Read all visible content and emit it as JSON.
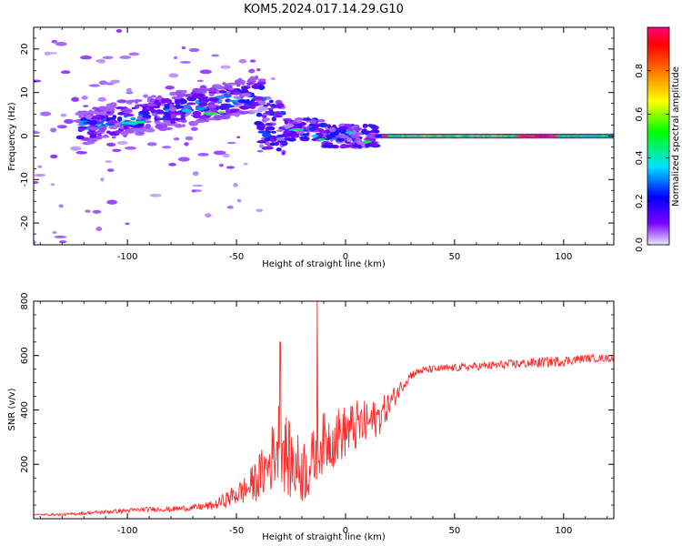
{
  "page_title": "KOM5.2024.017.14.29.G10",
  "chart_data": [
    {
      "type": "heatmap",
      "xlabel": "Height of straight line (km)",
      "ylabel": "Frequency (Hz)",
      "xlim": [
        -143,
        123
      ],
      "ylim": [
        -25,
        25
      ],
      "xticks": [
        -100,
        -50,
        0,
        50,
        100
      ],
      "yticks": [
        -20,
        -10,
        0,
        10,
        20
      ],
      "colorbar": {
        "label": "Normalized spectral amplitude",
        "range": [
          0,
          1
        ],
        "ticks": [
          "0.0",
          "0.2",
          "0.4",
          "0.6",
          "0.8"
        ],
        "colormap": "rainbow (purple → blue → cyan → green → yellow → red → magenta)"
      },
      "features": [
        {
          "x_range": [
            -120,
            -40
          ],
          "freq_trend_hz": [
            2,
            10
          ],
          "amplitude_max": 0.5
        },
        {
          "x_range": [
            -40,
            12
          ],
          "freq_hz": [
            -1,
            3
          ],
          "amplitude_max": 0.55
        },
        {
          "x_range": [
            15,
            123
          ],
          "freq_hz": 0,
          "amplitude_max": 0.9
        }
      ]
    },
    {
      "type": "line",
      "xlabel": "Height of straight line (km)",
      "ylabel": "SNR (v/v)",
      "xlim": [
        -143,
        123
      ],
      "ylim": [
        0,
        800
      ],
      "xticks": [
        -100,
        -50,
        0,
        50,
        100
      ],
      "yticks": [
        200,
        400,
        600,
        800
      ],
      "series": [
        {
          "color": "#ff2a2a",
          "x": [
            -143,
            -130,
            -120,
            -110,
            -100,
            -90,
            -80,
            -70,
            -60,
            -55,
            -50,
            -45,
            -40,
            -35,
            -32,
            -30,
            -28,
            -25,
            -20,
            -15,
            -13,
            -10,
            -5,
            0,
            5,
            10,
            15,
            20,
            25,
            30,
            35,
            40,
            50,
            60,
            70,
            80,
            90,
            100,
            110,
            123
          ],
          "y": [
            15,
            15,
            20,
            25,
            30,
            35,
            35,
            40,
            50,
            70,
            90,
            110,
            150,
            200,
            260,
            300,
            250,
            200,
            180,
            200,
            260,
            280,
            300,
            320,
            340,
            350,
            370,
            420,
            480,
            530,
            545,
            550,
            555,
            560,
            565,
            570,
            575,
            580,
            590,
            590
          ],
          "noise_envelope": [
            2,
            3,
            4,
            5,
            6,
            6,
            7,
            8,
            12,
            20,
            30,
            40,
            60,
            80,
            100,
            120,
            110,
            100,
            90,
            90,
            80,
            80,
            80,
            70,
            70,
            60,
            50,
            35,
            20,
            12,
            10,
            10,
            10,
            10,
            12,
            12,
            14,
            14,
            10,
            10
          ]
        }
      ],
      "spikes": [
        {
          "x": -30,
          "y": 650
        },
        {
          "x": -13,
          "y": 800
        }
      ]
    }
  ]
}
